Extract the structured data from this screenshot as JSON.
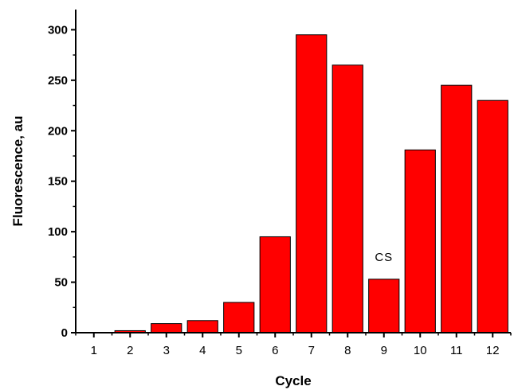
{
  "chart_data": {
    "type": "bar",
    "categories": [
      "1",
      "2",
      "3",
      "4",
      "5",
      "6",
      "7",
      "8",
      "9",
      "10",
      "11",
      "12"
    ],
    "values": [
      0,
      2,
      9,
      12,
      30,
      95,
      295,
      265,
      53,
      181,
      245,
      230
    ],
    "xlabel": "Cycle",
    "ylabel": "Fluorescence, au",
    "ylim": [
      0,
      320
    ],
    "yticks": [
      0,
      50,
      100,
      150,
      200,
      250,
      300
    ],
    "grid": false,
    "legend": "none",
    "bar_color": "#ff0000",
    "bar_edge_color": "#000000",
    "annotations": [
      {
        "text": "CS",
        "category": "9"
      }
    ]
  }
}
